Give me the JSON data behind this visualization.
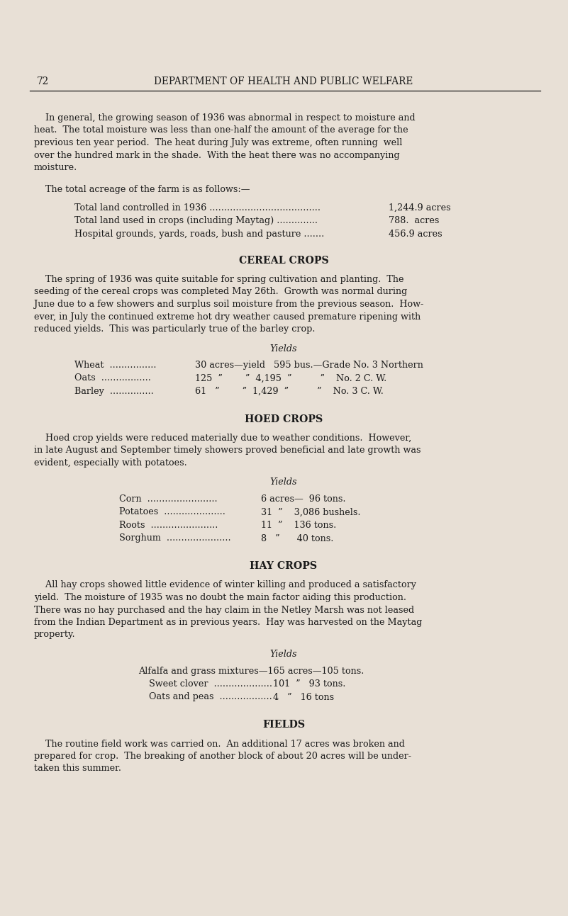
{
  "bg_color": "#e8e0d6",
  "text_color": "#1a1a1a",
  "page_number": "72",
  "header_title": "DEPARTMENT OF HEALTH AND PUBLIC WELFARE",
  "para1_lines": [
    "    In general, the growing season of 1936 was abnormal in respect to moisture and",
    "heat.  The total moisture was less than one-half the amount of the average for the",
    "previous ten year period.  The heat during July was extreme, often running  well",
    "over the hundred mark in the shade.  With the heat there was no accompanying",
    "moisture."
  ],
  "acreage_intro": "    The total acreage of the farm is as follows:—",
  "acreage_rows": [
    {
      "label": "Total land controlled in 1936 ",
      "dots": 38,
      "value": "1,244.9 acres"
    },
    {
      "label": "Total land used in crops (including Maytag) ",
      "dots": 14,
      "value": "788.  acres"
    },
    {
      "label": "Hospital grounds, yards, roads, bush and pasture ",
      "dots": 7,
      "value": "456.9 acres"
    }
  ],
  "section1_title": "CEREAL CROPS",
  "section1_lines": [
    "    The spring of 1936 was quite suitable for spring cultivation and planting.  The",
    "seeding of the cereal crops was completed May 26th.  Growth was normal during",
    "June due to a few showers and surplus soil moisture from the previous season.  How-",
    "ever, in July the continued extreme hot dry weather caused premature ripening with",
    "reduced yields.  This was particularly true of the barley crop."
  ],
  "yields1_title": "Yields",
  "cereal_rows": [
    {
      "crop": "Wheat",
      "dots": 16,
      "detail": "30 acres—yield   595 bus.—Grade No. 3 Northern"
    },
    {
      "crop": "Oats",
      "dots": 17,
      "detail": "125  ”        ”  4,195  ”          ”    No. 2 C. W."
    },
    {
      "crop": "Barley",
      "dots": 15,
      "detail": "61   ”        ”  1,429  ”          ”    No. 3 C. W."
    }
  ],
  "section2_title": "HOED CROPS",
  "section2_lines": [
    "    Hoed crop yields were reduced materially due to weather conditions.  However,",
    "in late August and September timely showers proved beneficial and late growth was",
    "evident, especially with potatoes."
  ],
  "yields2_title": "Yields",
  "hoed_rows": [
    {
      "crop": "Corn",
      "dots": 24,
      "detail": "6 acres—  96 tons."
    },
    {
      "crop": "Potatoes",
      "dots": 21,
      "detail": "31  ”    3,086 bushels."
    },
    {
      "crop": "Roots",
      "dots": 23,
      "detail": "11  ”    136 tons."
    },
    {
      "crop": "Sorghum",
      "dots": 22,
      "detail": "8   ”      40 tons."
    }
  ],
  "section3_title": "HAY CROPS",
  "section3_lines": [
    "    All hay crops showed little evidence of winter killing and produced a satisfactory",
    "yield.  The moisture of 1935 was no doubt the main factor aiding this production.",
    "There was no hay purchased and the hay claim in the Netley Marsh was not leased",
    "from the Indian Department as in previous years.  Hay was harvested on the Maytag",
    "property."
  ],
  "yields3_title": "Yields",
  "hay_row1": "Alfalfa and grass mixtures—165 acres—105 tons.",
  "hay_rows": [
    {
      "crop": "Sweet clover",
      "dots": 20,
      "detail": "101  ”   93 tons."
    },
    {
      "crop": "Oats and peas",
      "dots": 18,
      "detail": "4   ”   16 tons"
    }
  ],
  "section4_title": "FIELDS",
  "section4_lines": [
    "    The routine field work was carried on.  An additional 17 acres was broken and",
    "prepared for crop.  The breaking of another block of about 20 acres will be under-",
    "taken this summer."
  ]
}
